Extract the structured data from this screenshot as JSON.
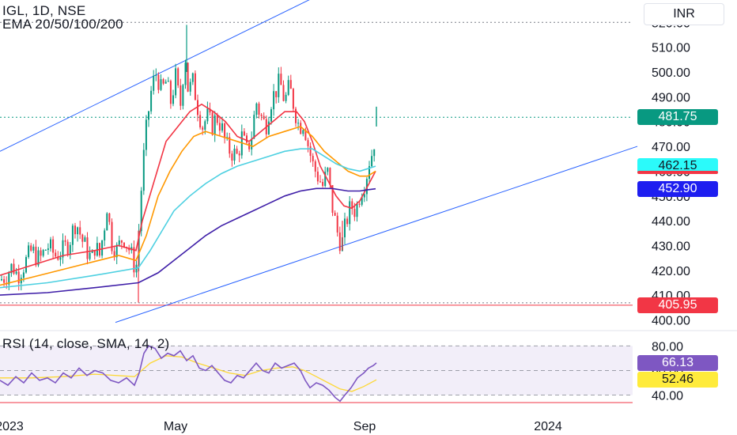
{
  "header": {
    "symbol_line": "IGL, 1D, NSE",
    "ema_line": "EMA 20/50/100/200",
    "rsi_line": "RSI (14, close, SMA, 14, 2)"
  },
  "currency_button": "INR",
  "price_axis": {
    "ticks": [
      "400.00",
      "410.00",
      "420.00",
      "430.00",
      "440.00",
      "450.00",
      "460.00",
      "470.00",
      "480.00",
      "490.00",
      "500.00",
      "510.00",
      "520.00"
    ],
    "badges": {
      "last_price": {
        "text": "481.75",
        "bg": "#089981",
        "fg": "#ffffff"
      },
      "ema_fast": {
        "text": "462.15",
        "bg": "#2bfafa",
        "fg": "#131722"
      },
      "ema_200": {
        "text": "452.90",
        "bg": "#1e1ef0",
        "fg": "#ffffff"
      },
      "support": {
        "text": "405.95",
        "bg": "#f23645",
        "fg": "#ffffff"
      }
    }
  },
  "rsi_axis": {
    "ticks": [
      "40.00",
      "60.00",
      "80.00"
    ],
    "badges": {
      "rsi": {
        "text": "66.13",
        "bg": "#7e57c2",
        "fg": "#ffffff"
      },
      "rsi_sma": {
        "text": "52.46",
        "bg": "#ffeb3b",
        "fg": "#131722"
      }
    }
  },
  "time_axis": {
    "labels": [
      "2023",
      "May",
      "Sep",
      "2024"
    ]
  },
  "colors": {
    "up": "#089981",
    "down": "#f23645",
    "ema20": "#f23645",
    "ema50": "#ff9800",
    "ema100": "#4dd0e1",
    "ema200": "#3f1fa8",
    "channel": "#2962ff",
    "rsi": "#7e57c2",
    "rsi_sma": "#fdd835"
  },
  "chart_data": {
    "type": "candlestick",
    "symbol": "IGL",
    "interval": "1D",
    "exchange": "NSE",
    "ylim": [
      396,
      526
    ],
    "close_anchors": [
      [
        0,
        416
      ],
      [
        8,
        418
      ],
      [
        16,
        422
      ],
      [
        22,
        418
      ],
      [
        30,
        422
      ],
      [
        40,
        428
      ],
      [
        50,
        424
      ],
      [
        60,
        430
      ],
      [
        70,
        426
      ],
      [
        80,
        428
      ],
      [
        88,
        432
      ],
      [
        96,
        440
      ],
      [
        104,
        432
      ],
      [
        110,
        428
      ],
      [
        116,
        424
      ],
      [
        120,
        430
      ],
      [
        126,
        426
      ],
      [
        132,
        438
      ],
      [
        136,
        448
      ],
      [
        140,
        432
      ],
      [
        148,
        428
      ],
      [
        156,
        434
      ],
      [
        164,
        428
      ],
      [
        172,
        420
      ],
      [
        176,
        438
      ],
      [
        180,
        460
      ],
      [
        186,
        480
      ],
      [
        192,
        494
      ],
      [
        198,
        500
      ],
      [
        204,
        492
      ],
      [
        210,
        496
      ],
      [
        216,
        488
      ],
      [
        222,
        498
      ],
      [
        228,
        486
      ],
      [
        234,
        508
      ],
      [
        238,
        492
      ],
      [
        244,
        496
      ],
      [
        250,
        486
      ],
      [
        256,
        478
      ],
      [
        262,
        482
      ],
      [
        268,
        478
      ],
      [
        274,
        482
      ],
      [
        280,
        478
      ],
      [
        286,
        470
      ],
      [
        292,
        468
      ],
      [
        300,
        466
      ],
      [
        306,
        474
      ],
      [
        312,
        468
      ],
      [
        318,
        474
      ],
      [
        324,
        488
      ],
      [
        330,
        482
      ],
      [
        336,
        478
      ],
      [
        342,
        488
      ],
      [
        348,
        492
      ],
      [
        354,
        496
      ],
      [
        360,
        488
      ],
      [
        366,
        494
      ],
      [
        372,
        486
      ],
      [
        378,
        478
      ],
      [
        384,
        480
      ],
      [
        390,
        470
      ],
      [
        396,
        462
      ],
      [
        402,
        458
      ],
      [
        408,
        454
      ],
      [
        414,
        460
      ],
      [
        420,
        446
      ],
      [
        426,
        436
      ],
      [
        432,
        430
      ],
      [
        438,
        440
      ],
      [
        444,
        446
      ],
      [
        450,
        444
      ],
      [
        456,
        452
      ],
      [
        462,
        456
      ],
      [
        468,
        466
      ],
      [
        472,
        468
      ],
      [
        476,
        481.75
      ]
    ],
    "ema_anchors": {
      "ema20": [
        [
          0,
          418
        ],
        [
          40,
          422
        ],
        [
          80,
          426
        ],
        [
          120,
          428
        ],
        [
          150,
          430
        ],
        [
          172,
          428
        ],
        [
          180,
          440
        ],
        [
          195,
          456
        ],
        [
          210,
          472
        ],
        [
          225,
          478
        ],
        [
          240,
          484
        ],
        [
          255,
          487
        ],
        [
          270,
          484
        ],
        [
          285,
          480
        ],
        [
          300,
          474
        ],
        [
          315,
          472
        ],
        [
          330,
          476
        ],
        [
          345,
          480
        ],
        [
          360,
          484
        ],
        [
          375,
          484
        ],
        [
          385,
          480
        ],
        [
          395,
          472
        ],
        [
          405,
          462
        ],
        [
          415,
          456
        ],
        [
          425,
          450
        ],
        [
          435,
          446
        ],
        [
          445,
          445
        ],
        [
          455,
          448
        ],
        [
          465,
          454
        ],
        [
          475,
          460
        ]
      ],
      "ema50": [
        [
          0,
          414
        ],
        [
          50,
          418
        ],
        [
          100,
          422
        ],
        [
          150,
          426
        ],
        [
          172,
          424
        ],
        [
          185,
          434
        ],
        [
          200,
          450
        ],
        [
          215,
          460
        ],
        [
          230,
          468
        ],
        [
          245,
          474
        ],
        [
          260,
          476
        ],
        [
          280,
          474
        ],
        [
          300,
          472
        ],
        [
          320,
          470
        ],
        [
          340,
          474
        ],
        [
          360,
          476
        ],
        [
          380,
          478
        ],
        [
          395,
          474
        ],
        [
          410,
          468
        ],
        [
          425,
          464
        ],
        [
          440,
          460
        ],
        [
          455,
          458
        ],
        [
          465,
          458
        ],
        [
          475,
          460
        ]
      ],
      "ema100": [
        [
          0,
          413
        ],
        [
          60,
          415
        ],
        [
          120,
          418
        ],
        [
          175,
          421
        ],
        [
          190,
          428
        ],
        [
          205,
          436
        ],
        [
          220,
          444
        ],
        [
          240,
          450
        ],
        [
          260,
          455
        ],
        [
          280,
          459
        ],
        [
          300,
          462
        ],
        [
          320,
          464
        ],
        [
          340,
          466
        ],
        [
          360,
          468
        ],
        [
          380,
          469
        ],
        [
          395,
          469
        ],
        [
          410,
          466
        ],
        [
          425,
          463
        ],
        [
          440,
          461
        ],
        [
          455,
          460
        ],
        [
          465,
          461
        ],
        [
          475,
          462
        ]
      ],
      "ema200": [
        [
          0,
          410
        ],
        [
          60,
          411
        ],
        [
          120,
          413
        ],
        [
          175,
          415
        ],
        [
          200,
          419
        ],
        [
          220,
          424
        ],
        [
          240,
          429
        ],
        [
          260,
          434
        ],
        [
          280,
          438
        ],
        [
          300,
          441
        ],
        [
          320,
          444
        ],
        [
          340,
          447
        ],
        [
          360,
          450
        ],
        [
          380,
          452
        ],
        [
          400,
          453
        ],
        [
          420,
          453
        ],
        [
          440,
          452
        ],
        [
          455,
          452
        ],
        [
          465,
          452.5
        ],
        [
          475,
          452.9
        ]
      ]
    },
    "channel": {
      "upper": [
        [
          0,
          468
        ],
        [
          416,
          533
        ]
      ],
      "lower": [
        [
          146,
          399
        ],
        [
          806,
          470
        ]
      ]
    },
    "support_level": 405.95,
    "last_price": 481.75,
    "rsi": {
      "ylim": [
        32,
        86
      ],
      "values": [
        [
          0,
          52
        ],
        [
          10,
          48
        ],
        [
          20,
          55
        ],
        [
          30,
          50
        ],
        [
          40,
          58
        ],
        [
          50,
          52
        ],
        [
          60,
          54
        ],
        [
          70,
          50
        ],
        [
          80,
          58
        ],
        [
          90,
          54
        ],
        [
          100,
          62
        ],
        [
          110,
          56
        ],
        [
          120,
          60
        ],
        [
          130,
          58
        ],
        [
          140,
          52
        ],
        [
          150,
          50
        ],
        [
          160,
          54
        ],
        [
          170,
          48
        ],
        [
          176,
          58
        ],
        [
          182,
          74
        ],
        [
          188,
          80
        ],
        [
          196,
          78
        ],
        [
          204,
          70
        ],
        [
          212,
          74
        ],
        [
          220,
          72
        ],
        [
          228,
          76
        ],
        [
          236,
          68
        ],
        [
          244,
          72
        ],
        [
          252,
          62
        ],
        [
          260,
          60
        ],
        [
          268,
          64
        ],
        [
          276,
          58
        ],
        [
          284,
          52
        ],
        [
          292,
          50
        ],
        [
          300,
          56
        ],
        [
          308,
          54
        ],
        [
          316,
          60
        ],
        [
          324,
          66
        ],
        [
          332,
          60
        ],
        [
          340,
          58
        ],
        [
          348,
          66
        ],
        [
          356,
          62
        ],
        [
          364,
          64
        ],
        [
          372,
          66
        ],
        [
          380,
          60
        ],
        [
          386,
          52
        ],
        [
          392,
          46
        ],
        [
          400,
          50
        ],
        [
          408,
          48
        ],
        [
          416,
          44
        ],
        [
          424,
          38
        ],
        [
          430,
          35
        ],
        [
          436,
          40
        ],
        [
          444,
          46
        ],
        [
          452,
          54
        ],
        [
          460,
          58
        ],
        [
          466,
          62
        ],
        [
          472,
          64
        ],
        [
          476,
          66.13
        ]
      ],
      "sma": [
        [
          0,
          54
        ],
        [
          40,
          54
        ],
        [
          80,
          55
        ],
        [
          120,
          57
        ],
        [
          170,
          55
        ],
        [
          190,
          66
        ],
        [
          210,
          72
        ],
        [
          230,
          71
        ],
        [
          250,
          66
        ],
        [
          270,
          62
        ],
        [
          290,
          58
        ],
        [
          310,
          56
        ],
        [
          330,
          60
        ],
        [
          350,
          62
        ],
        [
          370,
          63
        ],
        [
          385,
          60
        ],
        [
          400,
          55
        ],
        [
          415,
          50
        ],
        [
          430,
          45
        ],
        [
          445,
          43
        ],
        [
          460,
          47
        ],
        [
          476,
          52.46
        ]
      ],
      "levels": [
        40,
        60,
        80
      ]
    }
  }
}
